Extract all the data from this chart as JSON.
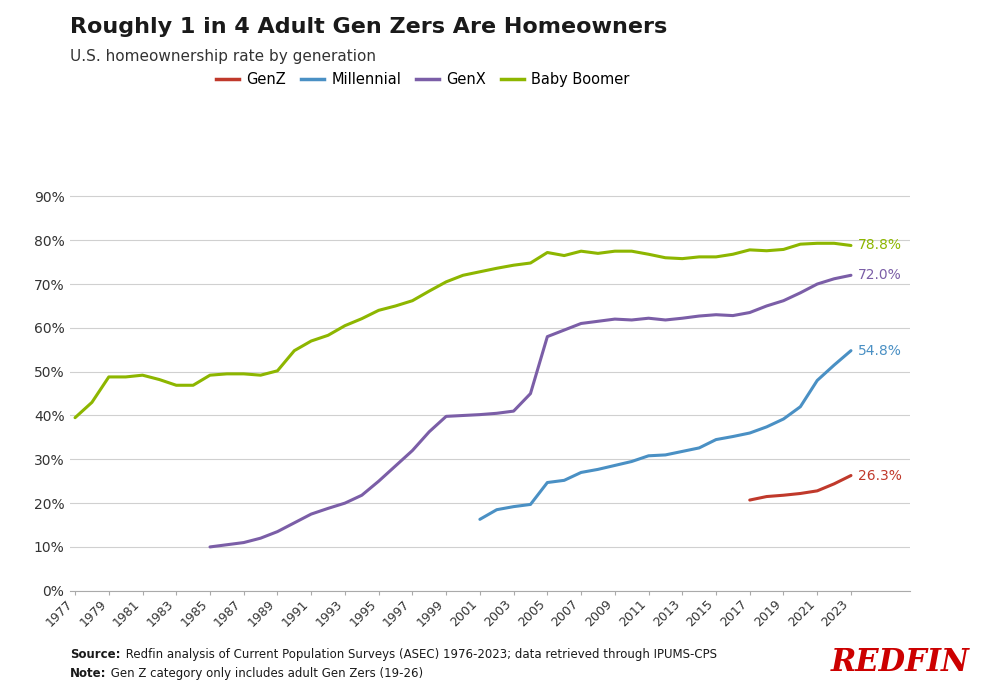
{
  "title": "Roughly 1 in 4 Adult Gen Zers Are Homeowners",
  "subtitle": "U.S. homeownership rate by generation",
  "source_label": "Source:",
  "source_body": " Redfin analysis of Current Population Surveys (ASEC) 1976-2023; data retrieved through IPUMS-CPS",
  "note_label": "Note:",
  "note_body": " Gen Z category only includes adult Gen Zers (19-26)",
  "redfin_text": "REDFIN",
  "background_color": "#ffffff",
  "genZ": {
    "label": "GenZ",
    "color": "#c0392b",
    "years": [
      2017,
      2018,
      2019,
      2020,
      2021,
      2022,
      2023
    ],
    "values": [
      0.207,
      0.215,
      0.218,
      0.222,
      0.228,
      0.244,
      0.263
    ]
  },
  "millennial": {
    "label": "Millennial",
    "color": "#4a90c4",
    "years": [
      2001,
      2002,
      2003,
      2004,
      2005,
      2006,
      2007,
      2008,
      2009,
      2010,
      2011,
      2012,
      2013,
      2014,
      2015,
      2016,
      2017,
      2018,
      2019,
      2020,
      2021,
      2022,
      2023
    ],
    "values": [
      0.163,
      0.185,
      0.192,
      0.197,
      0.247,
      0.252,
      0.27,
      0.277,
      0.286,
      0.295,
      0.308,
      0.31,
      0.318,
      0.326,
      0.345,
      0.352,
      0.36,
      0.374,
      0.392,
      0.42,
      0.48,
      0.515,
      0.548
    ]
  },
  "genX": {
    "label": "GenX",
    "color": "#7b5ea7",
    "years": [
      1985,
      1986,
      1987,
      1988,
      1989,
      1990,
      1991,
      1992,
      1993,
      1994,
      1995,
      1996,
      1997,
      1998,
      1999,
      2000,
      2001,
      2002,
      2003,
      2004,
      2005,
      2006,
      2007,
      2008,
      2009,
      2010,
      2011,
      2012,
      2013,
      2014,
      2015,
      2016,
      2017,
      2018,
      2019,
      2020,
      2021,
      2022,
      2023
    ],
    "values": [
      0.1,
      0.105,
      0.11,
      0.12,
      0.135,
      0.155,
      0.175,
      0.188,
      0.2,
      0.218,
      0.25,
      0.285,
      0.32,
      0.363,
      0.398,
      0.4,
      0.402,
      0.405,
      0.41,
      0.45,
      0.58,
      0.595,
      0.61,
      0.615,
      0.62,
      0.618,
      0.622,
      0.618,
      0.622,
      0.627,
      0.63,
      0.628,
      0.635,
      0.65,
      0.662,
      0.68,
      0.7,
      0.712,
      0.72
    ]
  },
  "babyBoomer": {
    "label": "Baby Boomer",
    "color": "#8db600",
    "years": [
      1977,
      1978,
      1979,
      1980,
      1981,
      1982,
      1983,
      1984,
      1985,
      1986,
      1987,
      1988,
      1989,
      1990,
      1991,
      1992,
      1993,
      1994,
      1995,
      1996,
      1997,
      1998,
      1999,
      2000,
      2001,
      2002,
      2003,
      2004,
      2005,
      2006,
      2007,
      2008,
      2009,
      2010,
      2011,
      2012,
      2013,
      2014,
      2015,
      2016,
      2017,
      2018,
      2019,
      2020,
      2021,
      2022,
      2023
    ],
    "values": [
      0.395,
      0.43,
      0.488,
      0.488,
      0.492,
      0.482,
      0.469,
      0.469,
      0.492,
      0.495,
      0.495,
      0.492,
      0.502,
      0.548,
      0.57,
      0.583,
      0.605,
      0.621,
      0.64,
      0.65,
      0.662,
      0.684,
      0.705,
      0.72,
      0.728,
      0.736,
      0.743,
      0.748,
      0.772,
      0.765,
      0.775,
      0.77,
      0.775,
      0.775,
      0.768,
      0.76,
      0.758,
      0.762,
      0.762,
      0.768,
      0.778,
      0.776,
      0.779,
      0.791,
      0.793,
      0.793,
      0.788
    ]
  },
  "xlim": [
    1977,
    2023
  ],
  "ylim": [
    0.0,
    0.92
  ],
  "yticks": [
    0.0,
    0.1,
    0.2,
    0.3,
    0.4,
    0.5,
    0.6,
    0.7,
    0.8,
    0.9
  ],
  "xticks": [
    1977,
    1979,
    1981,
    1983,
    1985,
    1987,
    1989,
    1991,
    1993,
    1995,
    1997,
    1999,
    2001,
    2003,
    2005,
    2007,
    2009,
    2011,
    2013,
    2015,
    2017,
    2019,
    2021,
    2023
  ],
  "end_labels": {
    "genZ": "26.3%",
    "millennial": "54.8%",
    "genX": "72.0%",
    "babyBoomer": "78.8%"
  }
}
